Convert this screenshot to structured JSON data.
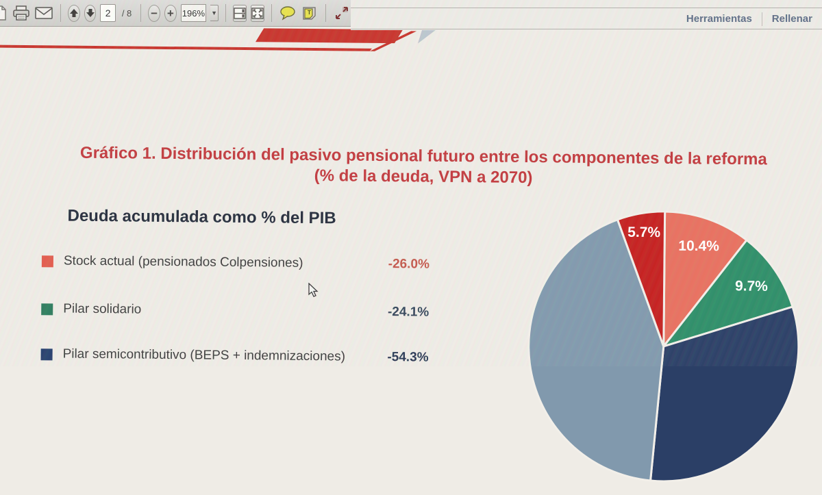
{
  "toolbar": {
    "page_current": "2",
    "page_total": "/ 8",
    "zoom_level": "196%",
    "icons": [
      "page-icon",
      "print-icon",
      "email-icon",
      "page-up-icon",
      "page-down-icon",
      "zoom-out-icon",
      "zoom-in-icon",
      "zoom-dropdown-icon",
      "scroll-view-icon",
      "fit-window-icon",
      "comment-bubble-icon",
      "sticky-note-icon",
      "resize-arrows-icon"
    ],
    "tabs": [
      {
        "label": "Herramientas"
      },
      {
        "label": "Rellenar"
      }
    ]
  },
  "document": {
    "title_line1": "Gráfico 1. Distribución del pasivo pensional futuro entre los componentes de la reforma",
    "title_line2": "(% de la deuda, VPN a 2070)",
    "title_color": "#c23a3e",
    "subtitle": "Deuda acumulada como % del PIB",
    "legend": [
      {
        "label": "Stock actual (pensionados Colpensiones)",
        "value": "-26.0%",
        "swatch": "#e25c4d",
        "value_color": "#c4584c"
      },
      {
        "label": "Pilar solidario",
        "value": "-24.1%",
        "swatch": "#2e7d5e",
        "value_color": "#37485c"
      },
      {
        "label": "Pilar semicontributivo (BEPS + indemnizaciones)",
        "value": "-54.3%",
        "swatch": "#27406e",
        "value_color": "#2b3a55"
      }
    ],
    "accent_red": "#c8342c"
  },
  "chart_data": {
    "type": "pie",
    "title": "Gráfico 1. Distribución del pasivo pensional futuro entre los componentes de la reforma (% de la deuda, VPN a 2070)",
    "direction": "clockwise",
    "start_angle_deg": 0,
    "slices": [
      {
        "label": "10.4%",
        "value": 10.4,
        "color": "#e8705f"
      },
      {
        "label": "9.7%",
        "value": 9.7,
        "color": "#2e8e68"
      },
      {
        "label": "",
        "value": 31.3,
        "color": "#2b3f66"
      },
      {
        "label": "",
        "value": 42.9,
        "color": "#8199ad"
      },
      {
        "label": "5.7%",
        "value": 5.7,
        "color": "#c5201f"
      }
    ],
    "note": "navy and gray slices extend below the visible screenshot edge; their percentage labels are not visible, values estimated from arc angles",
    "gap_color": "#f2efe9",
    "label_color": "#ffffff"
  }
}
